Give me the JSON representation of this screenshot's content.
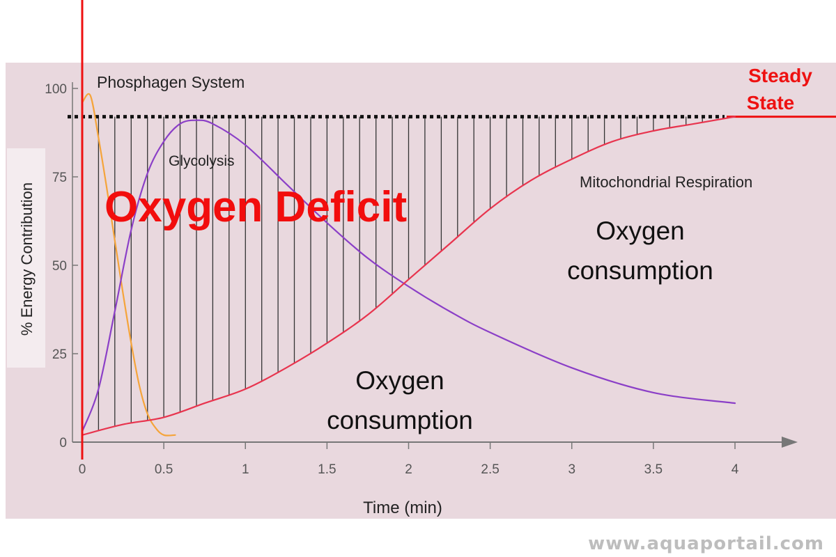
{
  "chart_data": {
    "type": "line",
    "title": "",
    "xlabel": "Time (min)",
    "ylabel": "% Energy Contribution",
    "xlim": [
      0,
      4
    ],
    "ylim": [
      0,
      100
    ],
    "x_ticks": [
      "0",
      "0.5",
      "1",
      "1.5",
      "2",
      "2.5",
      "3",
      "3.5",
      "4"
    ],
    "y_ticks": [
      "0",
      "25",
      "50",
      "75",
      "100"
    ],
    "grid": false,
    "series": [
      {
        "name": "Phosphagen System",
        "color": "#f5a43a",
        "x": [
          0.0,
          0.05,
          0.1,
          0.15,
          0.2,
          0.25,
          0.3,
          0.35,
          0.4,
          0.45,
          0.5,
          0.57
        ],
        "y": [
          96,
          98,
          86,
          72,
          57,
          42,
          28,
          16,
          8,
          4,
          2,
          2
        ]
      },
      {
        "name": "Glycolysis",
        "color": "#8b3fc7",
        "x": [
          0.0,
          0.1,
          0.2,
          0.3,
          0.4,
          0.5,
          0.6,
          0.7,
          0.8,
          1.0,
          1.25,
          1.5,
          1.75,
          2.0,
          2.25,
          2.5,
          3.0,
          3.5,
          4.0
        ],
        "y": [
          3,
          15,
          37,
          60,
          76,
          85,
          90,
          91,
          90,
          84,
          73,
          62,
          52,
          44,
          37,
          31,
          21,
          14,
          11
        ]
      },
      {
        "name": "Mitochondrial Respiration",
        "color": "#e8344e",
        "x": [
          0.0,
          0.25,
          0.5,
          0.75,
          1.0,
          1.25,
          1.5,
          1.75,
          2.0,
          2.25,
          2.5,
          2.75,
          3.0,
          3.25,
          3.5,
          3.75,
          4.0
        ],
        "y": [
          2,
          5,
          7,
          11,
          15,
          21,
          28,
          36,
          46,
          56,
          66,
          74,
          80,
          85,
          88,
          90,
          92
        ]
      }
    ],
    "steady_state_level": 92,
    "oxygen_deficit_hatch_step": 0.1
  },
  "annotations": {
    "oxygen_deficit": "Oxygen Deficit",
    "oxygen_consumption_upper_line1": "Oxygen",
    "oxygen_consumption_upper_line2": "consumption",
    "oxygen_consumption_lower_line1": "Oxygen",
    "oxygen_consumption_lower_line2": "consumption",
    "steady_state_line1": "Steady",
    "steady_state_line2": "State"
  },
  "watermark": "www.aquaportail.com",
  "colors": {
    "panel_background": "#e9d8de",
    "axis": "#777777",
    "annotation_red": "#ee1111",
    "hatch": "#333333"
  }
}
